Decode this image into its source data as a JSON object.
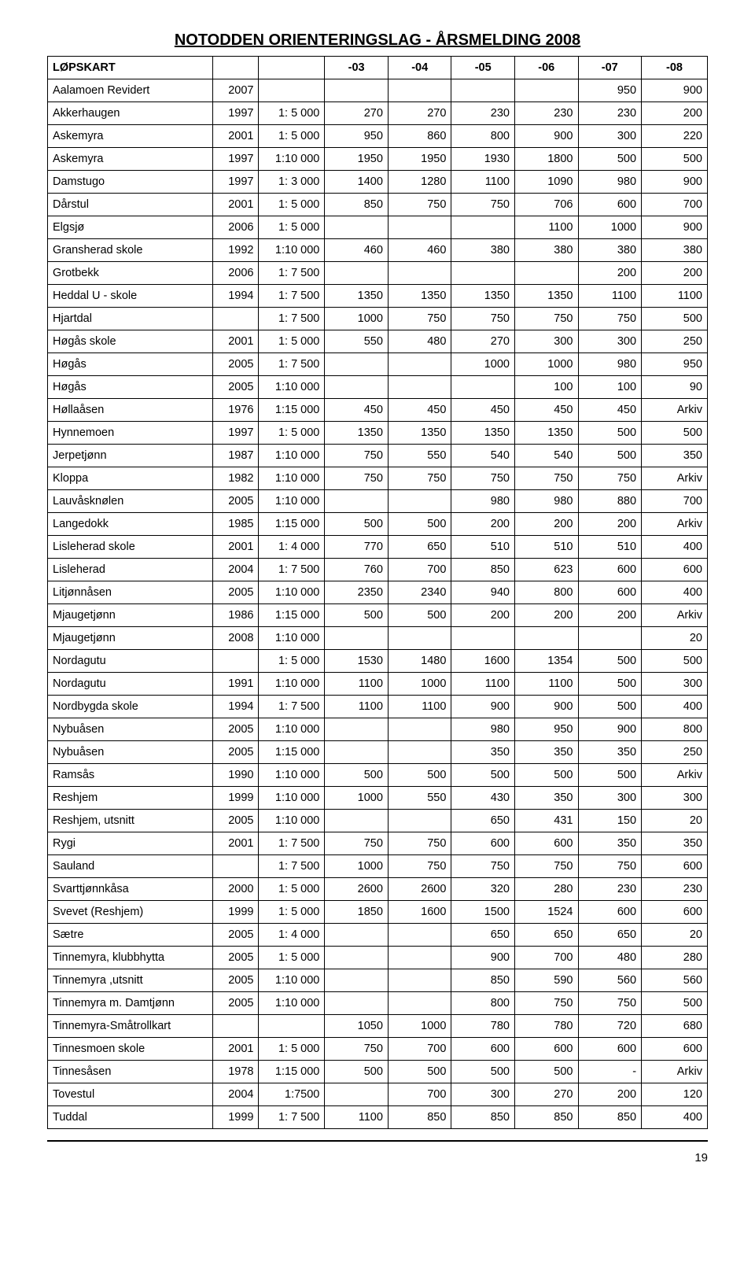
{
  "title": "NOTODDEN ORIENTERINGSLAG - ÅRSMELDING 2008",
  "table": {
    "columns": [
      "LØPSKART",
      "",
      "",
      "-03",
      "-04",
      "-05",
      "-06",
      "-07",
      "-08"
    ],
    "col_widths": [
      "25%",
      "7%",
      "10%",
      "9.6%",
      "9.6%",
      "9.6%",
      "9.6%",
      "9.6%",
      "10%"
    ],
    "title_fontsize": 20,
    "cell_fontsize": 14.5,
    "border_color": "#000000",
    "rows": [
      [
        "Aalamoen Revidert",
        "2007",
        "",
        "",
        "",
        "",
        "",
        "950",
        "900"
      ],
      [
        "Akkerhaugen",
        "1997",
        "1: 5 000",
        "270",
        "270",
        "230",
        "230",
        "230",
        "200"
      ],
      [
        "Askemyra",
        "2001",
        "1: 5 000",
        "950",
        "860",
        "800",
        "900",
        "300",
        "220"
      ],
      [
        "Askemyra",
        "1997",
        "1:10 000",
        "1950",
        "1950",
        "1930",
        "1800",
        "500",
        "500"
      ],
      [
        "Damstugo",
        "1997",
        "1: 3 000",
        "1400",
        "1280",
        "1100",
        "1090",
        "980",
        "900"
      ],
      [
        "Dårstul",
        "2001",
        "1: 5 000",
        "850",
        "750",
        "750",
        "706",
        "600",
        "700"
      ],
      [
        "Elgsjø",
        "2006",
        "1: 5 000",
        "",
        "",
        "",
        "1100",
        "1000",
        "900"
      ],
      [
        "Gransherad skole",
        "1992",
        "1:10 000",
        "460",
        "460",
        "380",
        "380",
        "380",
        "380"
      ],
      [
        "Grotbekk",
        "2006",
        "1: 7 500",
        "",
        "",
        "",
        "",
        "200",
        "200"
      ],
      [
        "Heddal U - skole",
        "1994",
        "1: 7 500",
        "1350",
        "1350",
        "1350",
        "1350",
        "1100",
        "1100"
      ],
      [
        "Hjartdal",
        "",
        "1: 7 500",
        "1000",
        "750",
        "750",
        "750",
        "750",
        "500"
      ],
      [
        "Høgås skole",
        "2001",
        "1: 5 000",
        "550",
        "480",
        "270",
        "300",
        "300",
        "250"
      ],
      [
        "Høgås",
        "2005",
        "1: 7 500",
        "",
        "",
        "1000",
        "1000",
        "980",
        "950"
      ],
      [
        "Høgås",
        "2005",
        "1:10 000",
        "",
        "",
        "",
        "100",
        "100",
        "90"
      ],
      [
        "Høllaåsen",
        "1976",
        "1:15 000",
        "450",
        "450",
        "450",
        "450",
        "450",
        "Arkiv"
      ],
      [
        "Hynnemoen",
        "1997",
        "1: 5 000",
        "1350",
        "1350",
        "1350",
        "1350",
        "500",
        "500"
      ],
      [
        "Jerpetjønn",
        "1987",
        "1:10 000",
        "750",
        "550",
        "540",
        "540",
        "500",
        "350"
      ],
      [
        "Kloppa",
        "1982",
        "1:10 000",
        "750",
        "750",
        "750",
        "750",
        "750",
        "Arkiv"
      ],
      [
        "Lauvåsknølen",
        "2005",
        "1:10 000",
        "",
        "",
        "980",
        "980",
        "880",
        "700"
      ],
      [
        "Langedokk",
        "1985",
        "1:15 000",
        "500",
        "500",
        "200",
        "200",
        "200",
        "Arkiv"
      ],
      [
        "Lisleherad skole",
        "2001",
        "1: 4 000",
        "770",
        "650",
        "510",
        "510",
        "510",
        "400"
      ],
      [
        "Lisleherad",
        "2004",
        "1: 7 500",
        "760",
        "700",
        "850",
        "623",
        "600",
        "600"
      ],
      [
        "Litjønnåsen",
        "2005",
        "1:10 000",
        "2350",
        "2340",
        "940",
        "800",
        "600",
        "400"
      ],
      [
        "Mjaugetjønn",
        "1986",
        "1:15 000",
        "500",
        "500",
        "200",
        "200",
        "200",
        "Arkiv"
      ],
      [
        "Mjaugetjønn",
        "2008",
        "1:10 000",
        "",
        "",
        "",
        "",
        "",
        "20"
      ],
      [
        "Nordagutu",
        "",
        "1: 5 000",
        "1530",
        "1480",
        "1600",
        "1354",
        "500",
        "500"
      ],
      [
        "Nordagutu",
        "1991",
        "1:10 000",
        "1100",
        "1000",
        "1100",
        "1100",
        "500",
        "300"
      ],
      [
        "Nordbygda skole",
        "1994",
        "1: 7 500",
        "1100",
        "1100",
        "900",
        "900",
        "500",
        "400"
      ],
      [
        "Nybuåsen",
        "2005",
        "1:10 000",
        "",
        "",
        "980",
        "950",
        "900",
        "800"
      ],
      [
        "Nybuåsen",
        "2005",
        "1:15 000",
        "",
        "",
        "350",
        "350",
        "350",
        "250"
      ],
      [
        "Ramsås",
        "1990",
        "1:10 000",
        "500",
        "500",
        "500",
        "500",
        "500",
        "Arkiv"
      ],
      [
        "Reshjem",
        "1999",
        "1:10 000",
        "1000",
        "550",
        "430",
        "350",
        "300",
        "300"
      ],
      [
        "Reshjem, utsnitt",
        "2005",
        "1:10 000",
        "",
        "",
        "650",
        "431",
        "150",
        "20"
      ],
      [
        "Rygi",
        "2001",
        "1: 7 500",
        "750",
        "750",
        "600",
        "600",
        "350",
        "350"
      ],
      [
        "Sauland",
        "",
        "1: 7 500",
        "1000",
        "750",
        "750",
        "750",
        "750",
        "600"
      ],
      [
        "Svarttjønnkåsa",
        "2000",
        "1: 5 000",
        "2600",
        "2600",
        "320",
        "280",
        "230",
        "230"
      ],
      [
        "Svevet (Reshjem)",
        "1999",
        "1: 5 000",
        "1850",
        "1600",
        "1500",
        "1524",
        "600",
        "600"
      ],
      [
        "Sætre",
        "2005",
        "1: 4 000",
        "",
        "",
        "650",
        "650",
        "650",
        "20"
      ],
      [
        "Tinnemyra, klubbhytta",
        "2005",
        "1: 5 000",
        "",
        "",
        "900",
        "700",
        "480",
        "280"
      ],
      [
        "Tinnemyra ,utsnitt",
        "2005",
        "1:10 000",
        "",
        "",
        "850",
        "590",
        "560",
        "560"
      ],
      [
        "Tinnemyra m. Damtjønn",
        "2005",
        "1:10 000",
        "",
        "",
        "800",
        "750",
        "750",
        "500"
      ],
      [
        "Tinnemyra-Småtrollkart",
        "",
        "",
        "1050",
        "1000",
        "780",
        "780",
        "720",
        "680"
      ],
      [
        "Tinnesmoen skole",
        "2001",
        "1: 5 000",
        "750",
        "700",
        "600",
        "600",
        "600",
        "600"
      ],
      [
        "Tinnesåsen",
        "1978",
        "1:15 000",
        "500",
        "500",
        "500",
        "500",
        "-",
        "Arkiv"
      ],
      [
        "Tovestul",
        "2004",
        "1:7500",
        "",
        "700",
        "300",
        "270",
        "200",
        "120"
      ],
      [
        "Tuddal",
        "1999",
        "1: 7 500",
        "1100",
        "850",
        "850",
        "850",
        "850",
        "400"
      ]
    ]
  },
  "page_number": "19"
}
